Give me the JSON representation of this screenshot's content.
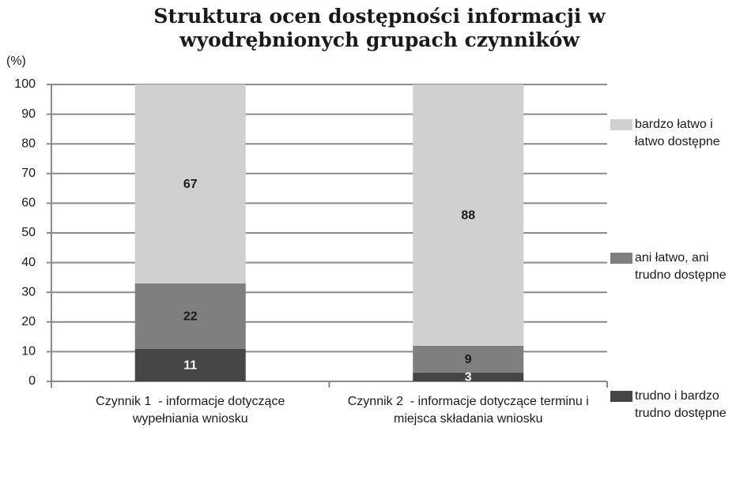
{
  "chart_data": {
    "type": "stacked_bar",
    "title": "Struktura ocen dostępności informacji w wyodrębnionych grupach czynników",
    "y_label": "(%)",
    "categories": [
      "Czynnik 1  - informacje dotyczące wypełniania wniosku",
      "Czynnik 2  - informacje dotyczące terminu i miejsca składania wniosku"
    ],
    "series": [
      {
        "name": "trudno i  bardzo trudno dostępne",
        "color": "#464646",
        "values": [
          11,
          3
        ]
      },
      {
        "name": "ani łatwo, ani trudno dostępne",
        "color": "#7f7f7f",
        "values": [
          22,
          9
        ]
      },
      {
        "name": "bardzo łatwo i łatwo dostępne",
        "color": "#d0d0d0",
        "values": [
          67,
          88
        ]
      }
    ],
    "ylim": [
      0,
      100
    ],
    "yticks": [
      0,
      10,
      20,
      30,
      40,
      50,
      60,
      70,
      80,
      90,
      100
    ],
    "grid": true,
    "legend": "right"
  }
}
